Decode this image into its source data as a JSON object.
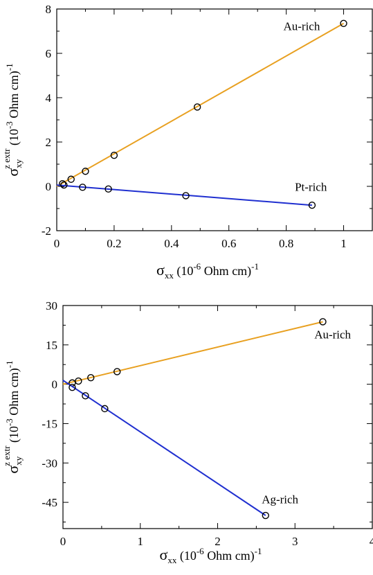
{
  "chart_data": [
    {
      "type": "line",
      "xlim": [
        0,
        1.1
      ],
      "ylim": [
        -2,
        8
      ],
      "xticks": [
        0,
        0.2,
        0.4,
        0.6,
        0.8,
        1
      ],
      "xtick_labels": [
        "0",
        "0.2",
        "0.4",
        "0.6",
        "0.8",
        "1"
      ],
      "yticks": [
        -2,
        0,
        2,
        4,
        6,
        8
      ],
      "ytick_labels": [
        "-2",
        "0",
        "2",
        "4",
        "6",
        "8"
      ],
      "xlabel": {
        "main": "σ",
        "sub": "xx",
        "unit_pre": " (10",
        "sup": "-6",
        "unit_post": " Ohm cm)",
        "tail": "-1"
      },
      "ylabel": {
        "main": "σ",
        "sub": "xy",
        "sup": "z extr",
        "unit_pre": "(10",
        "unit_sup": "-3",
        "unit_post": " Ohm cm)",
        "tail": "-1"
      },
      "grid": false,
      "series": [
        {
          "name": "Au-rich",
          "color": "#e8a020",
          "x": [
            0.02,
            0.05,
            0.1,
            0.2,
            0.49,
            1.0
          ],
          "y": [
            0.12,
            0.32,
            0.68,
            1.4,
            3.58,
            7.35
          ],
          "fit": [
            [
              0,
              0
            ],
            [
              1.0,
              7.35
            ]
          ],
          "label_at": [
            0.79,
            7.05
          ]
        },
        {
          "name": "Pt-rich",
          "color": "#1f2fd0",
          "x": [
            0.025,
            0.09,
            0.18,
            0.45,
            0.89
          ],
          "y": [
            0.06,
            -0.04,
            -0.12,
            -0.42,
            -0.85
          ],
          "fit": [
            [
              0,
              0.06
            ],
            [
              0.89,
              -0.85
            ]
          ],
          "label_at": [
            0.83,
            -0.2
          ]
        }
      ]
    },
    {
      "type": "line",
      "xlim": [
        0,
        4
      ],
      "ylim": [
        -55,
        30
      ],
      "xticks": [
        0,
        1,
        2,
        3,
        4
      ],
      "xtick_labels": [
        "0",
        "1",
        "2",
        "3",
        "4"
      ],
      "yticks": [
        30,
        15,
        0,
        -15,
        -30,
        -45
      ],
      "ytick_labels": [
        "30",
        "15",
        "0",
        "-15",
        "-30",
        "-45"
      ],
      "xlabel": {
        "main": "σ",
        "sub": "xx",
        "unit_pre": " (10",
        "sup": "-6",
        "unit_post": " Ohm cm)",
        "tail": "-1"
      },
      "ylabel": {
        "main": "σ",
        "sub": "xy",
        "sup": "z extr",
        "unit_pre": "(10",
        "unit_sup": "-3",
        "unit_post": " Ohm cm)",
        "tail": "-1"
      },
      "grid": false,
      "series": [
        {
          "name": "Au-rich",
          "color": "#e8a020",
          "x": [
            0.12,
            0.2,
            0.36,
            0.7,
            3.36
          ],
          "y": [
            0.5,
            1.2,
            2.5,
            4.8,
            23.8
          ],
          "fit": [
            [
              0,
              0
            ],
            [
              3.36,
              23.8
            ]
          ],
          "label_at": [
            3.25,
            17.5
          ]
        },
        {
          "name": "Ag-rich",
          "color": "#1f2fd0",
          "x": [
            0.12,
            0.29,
            0.54,
            2.62
          ],
          "y": [
            -1.2,
            -4.4,
            -9.3,
            -50.0
          ],
          "fit": [
            [
              0,
              1.5
            ],
            [
              2.62,
              -50.0
            ]
          ],
          "label_at": [
            2.57,
            -45.3
          ]
        }
      ]
    }
  ]
}
